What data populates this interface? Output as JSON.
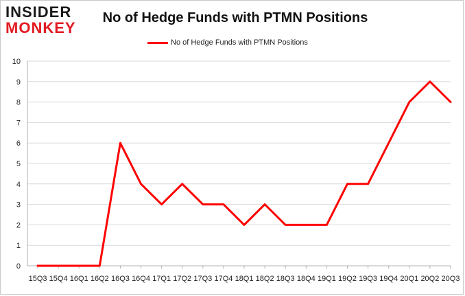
{
  "logo": {
    "line1": "INSIDER",
    "line2": "MONKEY"
  },
  "chart_data": {
    "type": "line",
    "title": "No of Hedge Funds with PTMN Positions",
    "legend": "No of Hedge Funds with PTMN Positions",
    "legend_position": "top-center",
    "xlabel": "",
    "ylabel": "",
    "ylim": [
      0,
      10
    ],
    "yticks": [
      0,
      1,
      2,
      3,
      4,
      5,
      6,
      7,
      8,
      9,
      10
    ],
    "grid": true,
    "line_color": "#ff0000",
    "categories": [
      "15Q3",
      "15Q4",
      "16Q1",
      "16Q2",
      "16Q3",
      "16Q4",
      "17Q1",
      "17Q2",
      "17Q3",
      "17Q4",
      "18Q1",
      "18Q2",
      "18Q3",
      "18Q4",
      "19Q1",
      "19Q2",
      "19Q3",
      "19Q4",
      "20Q1",
      "20Q2",
      "20Q3"
    ],
    "series": [
      {
        "name": "No of Hedge Funds with PTMN Positions",
        "values": [
          0,
          0,
          0,
          0,
          6,
          4,
          3,
          4,
          3,
          3,
          2,
          3,
          2,
          2,
          2,
          4,
          4,
          6,
          8,
          9,
          8
        ]
      }
    ]
  }
}
